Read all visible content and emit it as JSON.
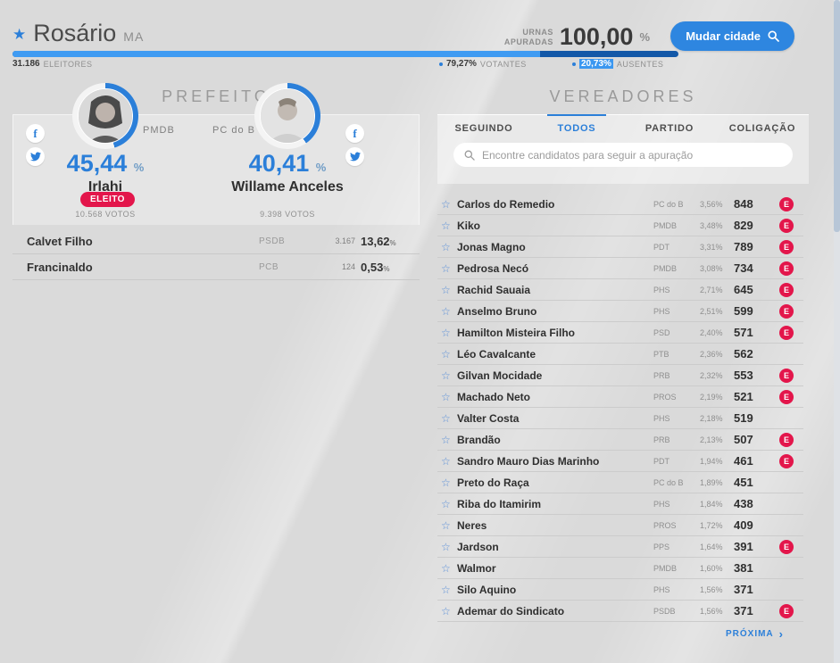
{
  "header": {
    "city": "Rosário",
    "state": "MA",
    "urnas_label_line1": "URNAS",
    "urnas_label_line2": "APURADAS",
    "urnas_value": "100,00",
    "percent_sign": "%",
    "change_city_label": "Mudar cidade",
    "stats": {
      "eleitores_value": "31.186",
      "eleitores_label": "ELEITORES",
      "votantes_value": "79,27%",
      "votantes_label": "VOTANTES",
      "ausentes_value": "20,73%",
      "ausentes_label": "AUSENTES"
    },
    "progress": {
      "votantes_pct": 79.27,
      "ausentes_pct": 20.73
    }
  },
  "prefeito": {
    "title": "PREFEITO",
    "elected_badge_label": "ELEITO",
    "candidates": [
      {
        "name": "Irlahi",
        "party": "PMDB",
        "percent": "45,44",
        "votes": "10.568 VOTOS",
        "elected": true,
        "ring_pct": 45.44
      },
      {
        "name": "Willame Anceles",
        "party": "PC do B",
        "percent": "40,41",
        "votes": "9.398 VOTOS",
        "elected": false,
        "ring_pct": 40.41
      }
    ],
    "others": [
      {
        "name": "Calvet Filho",
        "party": "PSDB",
        "votes": "3.167",
        "percent": "13,62"
      },
      {
        "name": "Francinaldo",
        "party": "PCB",
        "votes": "124",
        "percent": "0,53"
      }
    ]
  },
  "vereadores": {
    "title": "VEREADORES",
    "tabs": [
      {
        "label": "SEGUINDO",
        "active": false
      },
      {
        "label": "TODOS",
        "active": true
      },
      {
        "label": "PARTIDO",
        "active": false
      },
      {
        "label": "COLIGAÇÃO",
        "active": false
      }
    ],
    "search_placeholder": "Encontre candidatos para seguir a apuração",
    "elected_badge_letter": "E",
    "next_label": "PRÓXIMA",
    "rows": [
      {
        "name": "Carlos do Remedio",
        "party": "PC do B",
        "percent": "3,56%",
        "votes": "848",
        "elected": true
      },
      {
        "name": "Kiko",
        "party": "PMDB",
        "percent": "3,48%",
        "votes": "829",
        "elected": true
      },
      {
        "name": "Jonas Magno",
        "party": "PDT",
        "percent": "3,31%",
        "votes": "789",
        "elected": true
      },
      {
        "name": "Pedrosa Necó",
        "party": "PMDB",
        "percent": "3,08%",
        "votes": "734",
        "elected": true
      },
      {
        "name": "Rachid Sauaia",
        "party": "PHS",
        "percent": "2,71%",
        "votes": "645",
        "elected": true
      },
      {
        "name": "Anselmo Bruno",
        "party": "PHS",
        "percent": "2,51%",
        "votes": "599",
        "elected": true
      },
      {
        "name": "Hamilton Misteira Filho",
        "party": "PSD",
        "percent": "2,40%",
        "votes": "571",
        "elected": true
      },
      {
        "name": "Léo Cavalcante",
        "party": "PTB",
        "percent": "2,36%",
        "votes": "562",
        "elected": false
      },
      {
        "name": "Gilvan Mocidade",
        "party": "PRB",
        "percent": "2,32%",
        "votes": "553",
        "elected": true
      },
      {
        "name": "Machado Neto",
        "party": "PROS",
        "percent": "2,19%",
        "votes": "521",
        "elected": true
      },
      {
        "name": "Valter Costa",
        "party": "PHS",
        "percent": "2,18%",
        "votes": "519",
        "elected": false
      },
      {
        "name": "Brandão",
        "party": "PRB",
        "percent": "2,13%",
        "votes": "507",
        "elected": true
      },
      {
        "name": "Sandro Mauro Dias Marinho",
        "party": "PDT",
        "percent": "1,94%",
        "votes": "461",
        "elected": true
      },
      {
        "name": "Preto do Raça",
        "party": "PC do B",
        "percent": "1,89%",
        "votes": "451",
        "elected": false
      },
      {
        "name": "Riba do Itamirim",
        "party": "PHS",
        "percent": "1,84%",
        "votes": "438",
        "elected": false
      },
      {
        "name": "Neres",
        "party": "PROS",
        "percent": "1,72%",
        "votes": "409",
        "elected": false
      },
      {
        "name": "Jardson",
        "party": "PPS",
        "percent": "1,64%",
        "votes": "391",
        "elected": true
      },
      {
        "name": "Walmor",
        "party": "PMDB",
        "percent": "1,60%",
        "votes": "381",
        "elected": false
      },
      {
        "name": "Silo Aquino",
        "party": "PHS",
        "percent": "1,56%",
        "votes": "371",
        "elected": false
      },
      {
        "name": "Ademar do Sindicato",
        "party": "PSDB",
        "percent": "1,56%",
        "votes": "371",
        "elected": true
      }
    ]
  },
  "colors": {
    "accent_blue": "#2b7fd9",
    "bar_light_blue": "#3f9bf2",
    "bar_dark_blue": "#1358a8",
    "elected_red": "#e3164b",
    "ring_rest": "#f4f4f4"
  }
}
